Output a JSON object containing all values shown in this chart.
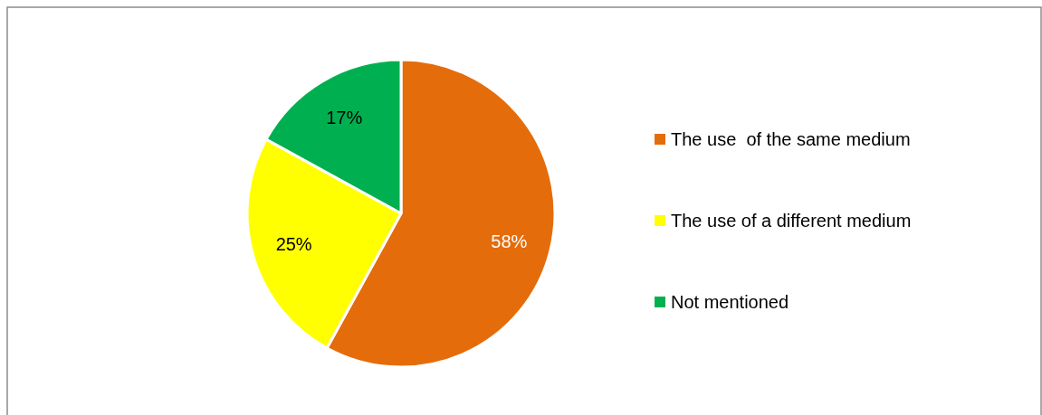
{
  "chart_data": {
    "type": "pie",
    "categories": [
      "The use  of the same medium",
      "The use of a different medium",
      "Not mentioned"
    ],
    "values": [
      58,
      25,
      17
    ],
    "colors": [
      "#e46c0a",
      "#ffff00",
      "#00b050"
    ],
    "value_labels": [
      "58%",
      "25%",
      "17%"
    ],
    "legend": "right"
  }
}
